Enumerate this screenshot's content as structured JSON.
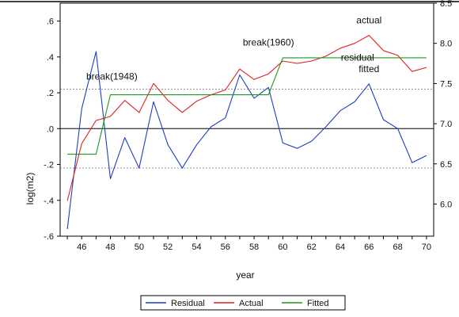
{
  "chart_data": {
    "type": "line",
    "title": "",
    "x": [
      45,
      46,
      47,
      48,
      49,
      50,
      51,
      52,
      53,
      54,
      55,
      56,
      57,
      58,
      59,
      60,
      61,
      62,
      63,
      64,
      65,
      66,
      67,
      68,
      69,
      70
    ],
    "xlabel": "year",
    "xlim": [
      44.5,
      70.5
    ],
    "x_ticks": [
      "46",
      "48",
      "50",
      "52",
      "54",
      "56",
      "58",
      "60",
      "62",
      "64",
      "66",
      "68",
      "70"
    ],
    "left_axis": {
      "label": "log(m2)",
      "range": [
        -0.6,
        0.7
      ],
      "ticks": [
        "-.6",
        "-.4",
        "-.2",
        ".0",
        ".2",
        ".4",
        ".6"
      ]
    },
    "right_axis": {
      "range": [
        5.6,
        8.5
      ],
      "ticks": [
        "6.0",
        "6.5",
        "7.0",
        "7.5",
        "8.0",
        "8.5"
      ]
    },
    "series": [
      {
        "name": "Residual",
        "axis": "left",
        "color": "#1f3fbf",
        "values": [
          -0.56,
          0.11,
          0.43,
          -0.28,
          -0.05,
          -0.22,
          0.15,
          -0.09,
          -0.22,
          -0.09,
          0.01,
          0.06,
          0.3,
          0.17,
          0.23,
          -0.08,
          -0.11,
          -0.07,
          0.01,
          0.1,
          0.15,
          0.25,
          0.05,
          0.0,
          -0.19,
          -0.15
        ]
      },
      {
        "name": "Actual",
        "axis": "right",
        "color": "#e02020",
        "values": [
          6.04,
          6.75,
          7.04,
          7.09,
          7.29,
          7.14,
          7.5,
          7.29,
          7.14,
          7.28,
          7.36,
          7.42,
          7.68,
          7.55,
          7.62,
          7.78,
          7.75,
          7.78,
          7.84,
          7.94,
          8.0,
          8.1,
          7.91,
          7.85,
          7.65,
          7.7
        ]
      },
      {
        "name": "Fitted",
        "axis": "right",
        "color": "#1a9a1a",
        "values": [
          6.62,
          6.62,
          6.62,
          7.36,
          7.36,
          7.36,
          7.36,
          7.36,
          7.36,
          7.36,
          7.36,
          7.36,
          7.36,
          7.36,
          7.36,
          7.82,
          7.82,
          7.82,
          7.82,
          7.82,
          7.82,
          7.82,
          7.82,
          7.82,
          7.82,
          7.82
        ]
      }
    ],
    "reference_lines": [
      {
        "axis": "left",
        "value": 0.0,
        "style": "solid"
      },
      {
        "axis": "left",
        "value": 0.22,
        "style": "dashed"
      },
      {
        "axis": "left",
        "value": -0.22,
        "style": "dashed"
      }
    ],
    "annotations": [
      {
        "text": "break(1948)",
        "x": 48.1,
        "y_right": 7.55
      },
      {
        "text": "break(1960)",
        "x": 59.0,
        "y_right": 7.97
      },
      {
        "text": "actual",
        "x": 66.0,
        "y_right": 8.25
      },
      {
        "text": "fitted",
        "x": 66.0,
        "y_right": 7.64
      },
      {
        "text": "residual",
        "x": 65.2,
        "y_left": 0.38
      }
    ],
    "legend": {
      "placement": "bottom",
      "entries": [
        "Residual",
        "Actual",
        "Fitted"
      ]
    },
    "grid": false
  }
}
